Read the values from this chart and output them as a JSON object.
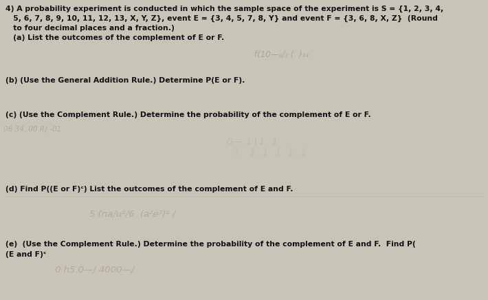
{
  "background_color": "#c8c4b8",
  "paper_color": "#e8e4da",
  "line1": "4) A probability experiment is conducted in which the sample space of the experiment is S = {1, 2, 3, 4,",
  "line2": "   5, 6, 7, 8, 9, 10, 11, 12, 13, X, Y, Z}, event E = {3, 4, 5, 7, 8, Y} and event F = {3, 6, 8, X, Z}  (Round",
  "line3": "   to four decimal places and a fraction.)",
  "line4": "   (a) List the outcomes of the complement of E or F.",
  "q_b": "(b) (Use the General Addition Rule.) Determine P(E or F).",
  "q_c": "(c) (Use the Complement Rule.) Determine the probability of the complement of E or F.",
  "q_d": "(d) Find P((E or F)ᶜ) List the outcomes of the complement of E and F.",
  "q_e1": "(e)  (Use the Complement Rule.) Determine the probability of the complement of E and F.  Find P(",
  "q_e2": "(E and F)ᶜ",
  "hand_a": "f(10—₉/₂ (  )₃₄",
  "hand_c_left": "08 34. 00 R) -01",
  "hand_c_center": "G— 1 | 1 1",
  "hand_d": "5 (na/u²/6 (a²e²)² /",
  "hand_e": "0 h5.0—/ 4000—/",
  "fs": 7.8,
  "fs_hand": 8.5
}
